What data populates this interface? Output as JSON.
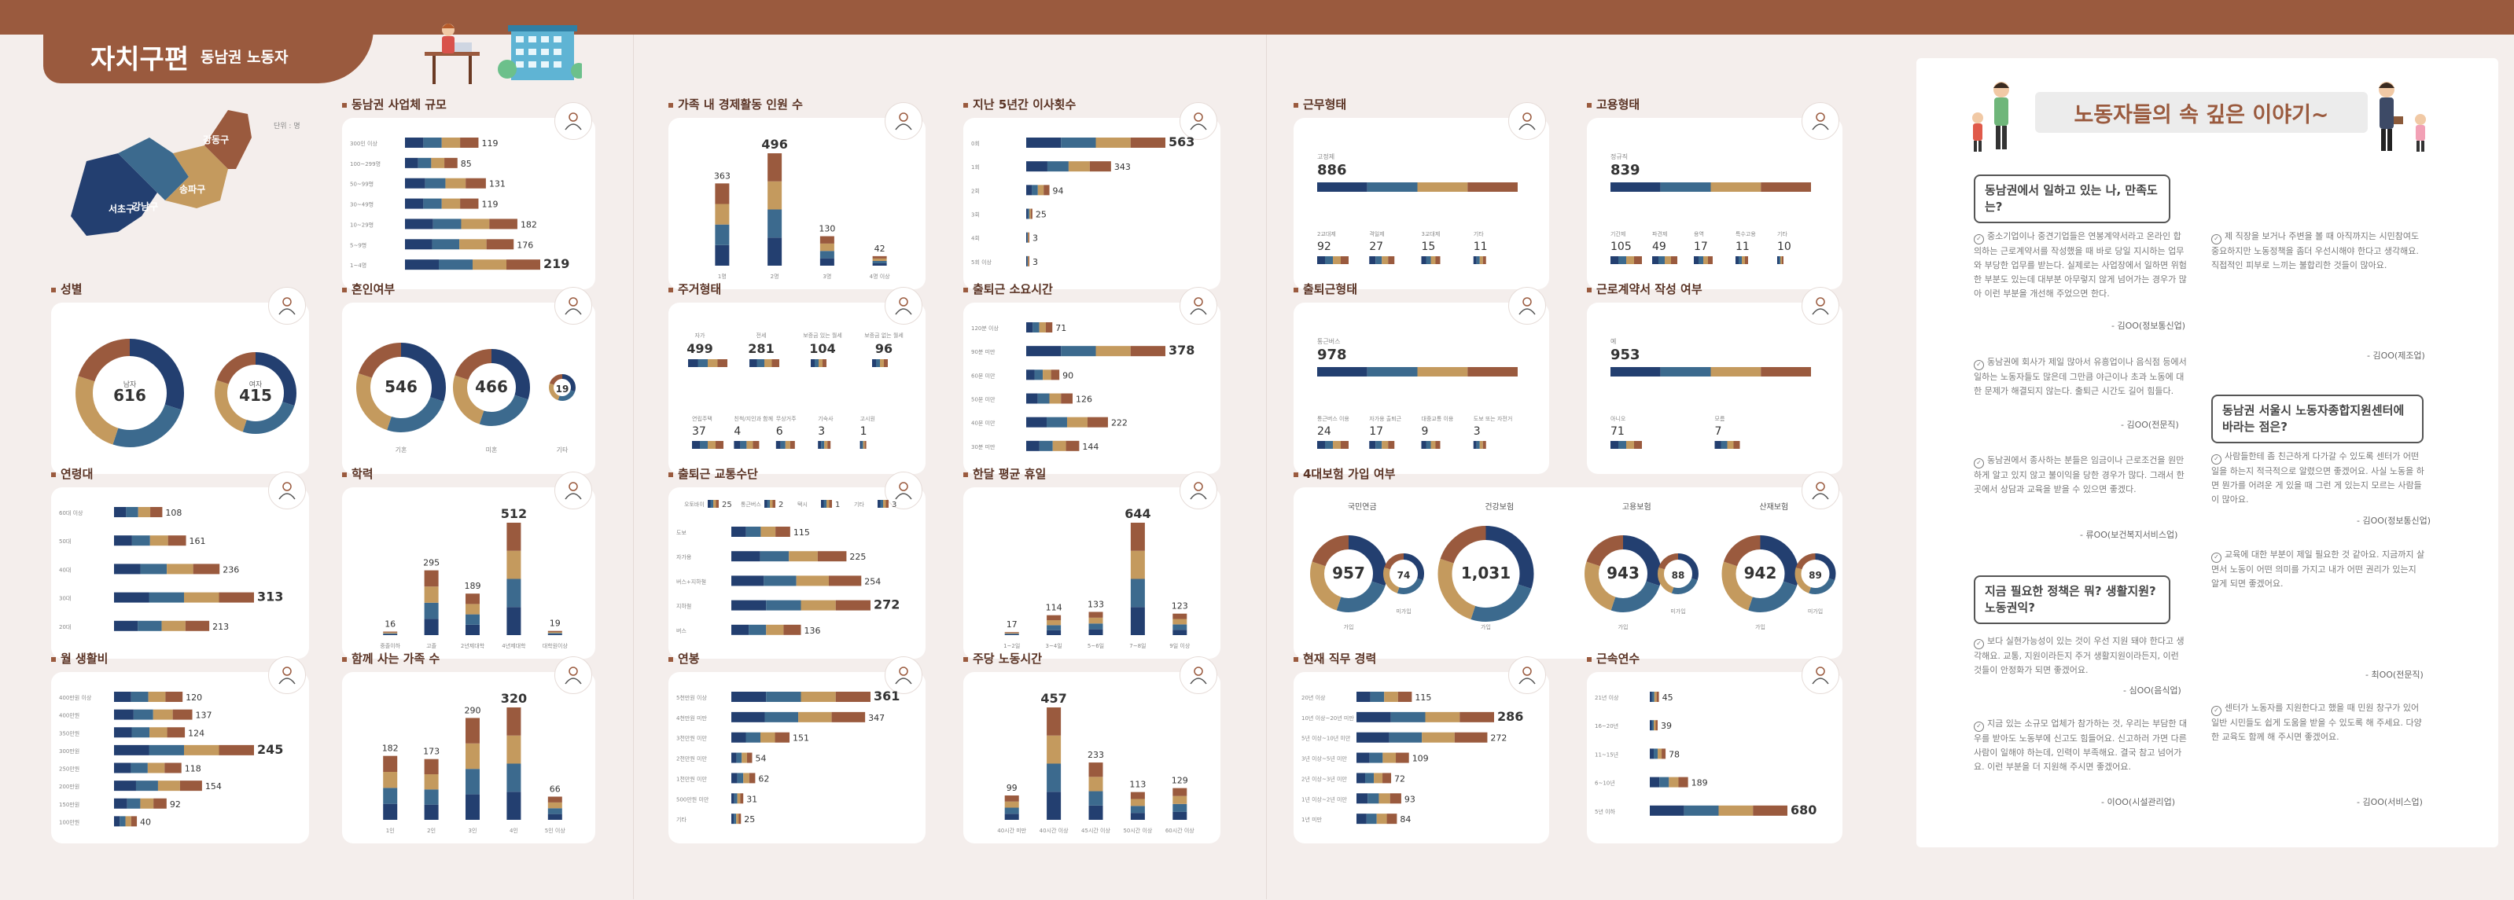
{
  "header": {
    "title": "자치구편",
    "subtitle": "동남권 노동자"
  },
  "colors": {
    "navy": "#233f70",
    "blue": "#3c6a8e",
    "tan": "#c49a5e",
    "brown": "#9a5a3e",
    "gray": "#bfbfbf"
  },
  "map": {
    "unit": "단위 : 명",
    "districts": [
      "강동구",
      "송파구",
      "강남구",
      "서초구"
    ]
  },
  "charts": [
    {
      "id": "workplace",
      "title": "동남권 사업체 규모",
      "icon": "building-icon",
      "type": "hbar",
      "categories": [
        "300인 이상",
        "100~299명",
        "50~99명",
        "30~49명",
        "10~29명",
        "5~9명",
        "1~4명"
      ],
      "values": [
        119,
        85,
        131,
        119,
        182,
        176,
        219
      ]
    },
    {
      "id": "econ",
      "title": "가족 내 경제활동 인원 수",
      "icon": "family-icon",
      "type": "vbar",
      "categories": [
        "1명",
        "2명",
        "3명",
        "4명 이상"
      ],
      "values": [
        363,
        496,
        130,
        42
      ]
    },
    {
      "id": "moves",
      "title": "지난 5년간 이사횟수",
      "icon": "moving-icon",
      "type": "hbar",
      "categories": [
        "0회",
        "1회",
        "2회",
        "3회",
        "4회",
        "5회 이상"
      ],
      "values": [
        563,
        343,
        94,
        25,
        3,
        3
      ]
    },
    {
      "id": "worktype",
      "title": "근무형태",
      "icon": "clock-icon",
      "type": "split",
      "top": {
        "label": "고정제",
        "value": "886"
      },
      "labels": [
        "2교대제",
        "격일제",
        "3교대제",
        "기타"
      ],
      "values": [
        "92",
        "27",
        "15",
        "11"
      ]
    },
    {
      "id": "emptype",
      "title": "고용형태",
      "icon": "worker-icon",
      "type": "split",
      "top": {
        "label": "정규직",
        "value": "839"
      },
      "labels": [
        "기간제",
        "파견제",
        "용역",
        "특수고용",
        "기타"
      ],
      "values": [
        "105",
        "49",
        "17",
        "11",
        "10"
      ]
    },
    {
      "id": "gender",
      "title": "성별",
      "icon": "couple-icon",
      "type": "donut2",
      "items": [
        {
          "label": "남자",
          "value": "616"
        },
        {
          "label": "여자",
          "value": "415"
        }
      ]
    },
    {
      "id": "marriage",
      "title": "혼인여부",
      "icon": "wedding-icon",
      "type": "donut3",
      "items": [
        {
          "label": "기혼",
          "value": "546"
        },
        {
          "label": "미혼",
          "value": "466"
        },
        {
          "label": "기타",
          "value": "19"
        }
      ]
    },
    {
      "id": "housing",
      "title": "주거형태",
      "icon": "house-icon",
      "type": "split",
      "top": {
        "labels": [
          "자가",
          "전세",
          "보증금 있는 월세",
          "보증금 없는 월세"
        ],
        "values": [
          "499",
          "281",
          "104",
          "96"
        ]
      },
      "labels": [
        "연립주택",
        "친척/지인과 함께",
        "무상거주",
        "기숙사",
        "고시원"
      ],
      "values": [
        "37",
        "4",
        "6",
        "3",
        "1"
      ]
    },
    {
      "id": "commutetime",
      "title": "출퇴근 소요시간",
      "icon": "timer-icon",
      "type": "hbar",
      "categories": [
        "120분 이상",
        "90분 미만",
        "60분 미만",
        "50분 미만",
        "40분 미만",
        "30분 미만"
      ],
      "values": [
        71,
        378,
        90,
        126,
        222,
        144
      ]
    },
    {
      "id": "commuteform",
      "title": "출퇴근형태",
      "icon": "commuter-icon",
      "type": "split",
      "top": {
        "label": "통근버스",
        "value": "978"
      },
      "labels": [
        "통근버스 이용",
        "자가용 출퇴근",
        "대중교통 이용",
        "도보 또는 자전거"
      ],
      "values": [
        "24",
        "17",
        "9",
        "3"
      ]
    },
    {
      "id": "contract",
      "title": "근로계약서 작성 여부",
      "icon": "contract-icon",
      "type": "split",
      "top": {
        "label": "예",
        "value": "953"
      },
      "labels": [
        "아니오",
        "모름"
      ],
      "values": [
        "71",
        "7"
      ]
    },
    {
      "id": "age",
      "title": "연령대",
      "icon": "magnify-person-icon",
      "type": "hbar",
      "categories": [
        "60대 이상",
        "50대",
        "40대",
        "30대",
        "20대"
      ],
      "values": [
        108,
        161,
        236,
        313,
        213
      ]
    },
    {
      "id": "edu",
      "title": "학력",
      "icon": "graduate-icon",
      "type": "vbar",
      "categories": [
        "중졸이하",
        "고졸",
        "2년제대학",
        "4년제대학",
        "대학원이상"
      ],
      "values": [
        16,
        295,
        189,
        512,
        19
      ]
    },
    {
      "id": "transport",
      "title": "출퇴근 교통수단",
      "icon": "bus-icon",
      "type": "hbar",
      "extra": {
        "labels": [
          "오토바이",
          "통근버스",
          "택시",
          "기타"
        ],
        "values": [
          "25",
          "2",
          "1",
          "3"
        ]
      },
      "categories": [
        "도보",
        "자가용",
        "버스+지하철",
        "지하철",
        "버스"
      ],
      "values": [
        115,
        225,
        254,
        272,
        136
      ]
    },
    {
      "id": "holiday",
      "title": "한달 평균 휴일",
      "icon": "calendar-icon",
      "type": "vbar",
      "categories": [
        "1~2일",
        "3~4일",
        "5~6일",
        "7~8일",
        "9일 이상"
      ],
      "values": [
        17,
        114,
        133,
        644,
        123
      ]
    },
    {
      "id": "insurance",
      "title": "4대보험 가입 여부",
      "icon": "insurance-icon",
      "type": "donuts4",
      "items": [
        {
          "label": "국민연금",
          "a": "957",
          "b": "74"
        },
        {
          "label": "건강보험",
          "a": "1,031",
          "b": ""
        },
        {
          "label": "고용보험",
          "a": "943",
          "b": "88"
        },
        {
          "label": "산재보험",
          "a": "942",
          "b": "89"
        }
      ],
      "sublabels": [
        "가입",
        "미가입"
      ]
    },
    {
      "id": "living",
      "title": "월 생활비",
      "icon": "money-icon",
      "type": "hbar",
      "categories": [
        "400만원 이상",
        "400만원",
        "350만원",
        "300만원",
        "250만원",
        "200만원",
        "150만원",
        "100만원"
      ],
      "values": [
        120,
        137,
        124,
        245,
        118,
        154,
        92,
        40
      ]
    },
    {
      "id": "household",
      "title": "함께 사는 가족 수",
      "icon": "household-icon",
      "type": "vbar",
      "categories": [
        "1인",
        "2인",
        "3인",
        "4인",
        "5인 이상"
      ],
      "values": [
        182,
        173,
        290,
        320,
        66
      ]
    },
    {
      "id": "salary",
      "title": "연봉",
      "icon": "envelope-icon",
      "type": "hbar",
      "categories": [
        "5천만원 이상",
        "4천만원 미만",
        "3천만원 미만",
        "2천만원 미만",
        "1천만원 미만",
        "500만원 미만",
        "기타"
      ],
      "values": [
        361,
        347,
        151,
        54,
        62,
        31,
        25
      ]
    },
    {
      "id": "weekhours",
      "title": "주당 노동시간",
      "icon": "clock-check-icon",
      "type": "vbar",
      "categories": [
        "40시간 미만",
        "40시간 이상",
        "45시간 이상",
        "50시간 이상",
        "60시간 이상"
      ],
      "values": [
        99,
        457,
        233,
        113,
        129
      ]
    },
    {
      "id": "career",
      "title": "현재 직무 경력",
      "icon": "chart-up-icon",
      "type": "hbar",
      "categories": [
        "20년 이상",
        "10년 이상~20년 미만",
        "5년 이상~10년 미만",
        "3년 이상~5년 미만",
        "2년 이상~3년 미만",
        "1년 이상~2년 미만",
        "1년 미만"
      ],
      "values": [
        115,
        286,
        272,
        109,
        72,
        93,
        84
      ]
    },
    {
      "id": "tenure",
      "title": "근속연수",
      "icon": "person-check-icon",
      "type": "hbar",
      "categories": [
        "21년 이상",
        "16~20년",
        "11~15년",
        "6~10년",
        "5년 이하"
      ],
      "values": [
        45,
        39,
        78,
        189,
        680
      ]
    }
  ],
  "story": {
    "title": "노동자들의 속 깊은 이야기~",
    "q1": "동남권에서 일하고 있는 나, 만족도는?",
    "q2": "동남권 서울시 노동자종합지원센터에 바라는 점은?",
    "q3": "지금 필요한 정책은 뭐? 생활지원? 노동권익?",
    "col1": [
      {
        "text": "중소기업이나 중견기업들은 연봉계약서라고 온라인 합의하는 근로계약서를 작성했을 때 바로 당일 지시하는 업무와 부당한 업무를 받는다. 실제로는 사업장에서 일하면 위험한 부분도 있는데 대부분 아무렇지 않게 넘어가는 경우가 많아 이런 부분을 개선해 주었으면 한다.",
        "sig": "- 김OO(정보통신업)"
      },
      {
        "text": "동남권에 회사가 제일 많아서 유흥업이나 음식점 등에서 일하는 노동자들도 많은데 그만큼 야근이나 초과 노동에 대한 문제가 해결되지 않는다. 출퇴근 시간도 길어 힘들다.",
        "sig": "- 김OO(전문직)"
      },
      {
        "text": "동남권에서 종사하는 분들은 임금이나 근로조건을 원만하게 알고 있지 않고 불이익을 당한 경우가 많다. 그래서 한곳에서 상담과 교육을 받을 수 있으면 좋겠다.",
        "sig": "- 류OO(보건복지서비스업)"
      },
      {
        "text": "보다 실현가능성이 있는 것이 우선 지원 돼야 한다고 생각해요. 교통, 지원이라든지 주거 생활지원이라든지, 이런 것들이 안정화가 되면 좋겠어요.",
        "sig": "- 심OO(음식업)"
      },
      {
        "text": "지금 있는 소규모 업체가 참가하는 것, 우리는 부담한 대우를 받아도 노동부에 신고도 힘들어요. 신고하러 가면 다른 사람이 일해야 하는데, 인력이 부족해요. 결국 참고 넘어가요. 이런 부분을 더 지원해 주시면 좋겠어요.",
        "sig": "- 이OO(시설관리업)"
      }
    ],
    "col2": [
      {
        "text": "제 직장을 보거나 주변을 볼 때 아직까지는 시민참여도 중요하지만 노동정책을 좀더 우선시해야 한다고 생각해요. 직접적인 피부로 느끼는 불합리한 것들이 많아요.",
        "sig": "- 김OO(제조업)"
      },
      {
        "text": "사람들한테 좀 친근하게 다가갈 수 있도록 센터가 어떤 일을 하는지 적극적으로 알렸으면 좋겠어요. 사실 노동을 하면 뭔가를 어려운 게 있을 때 그런 게 있는지 모르는 사람들이 많아요.",
        "sig": "- 김OO(정보통신업)"
      },
      {
        "text": "교육에 대한 부분이 제일 필요한 것 같아요. 지금까지 살면서 노동이 어떤 의미를 가지고 내가 어떤 권리가 있는지 알게 되면 좋겠어요.",
        "sig": "- 최OO(전문직)"
      },
      {
        "text": "센터가 노동자를 지원한다고 했을 때 민원 창구가 있어 일반 시민들도 쉽게 도움을 받을 수 있도록 해 주세요. 다양한 교육도 함께 해 주시면 좋겠어요.",
        "sig": "- 김OO(서비스업)"
      }
    ]
  }
}
